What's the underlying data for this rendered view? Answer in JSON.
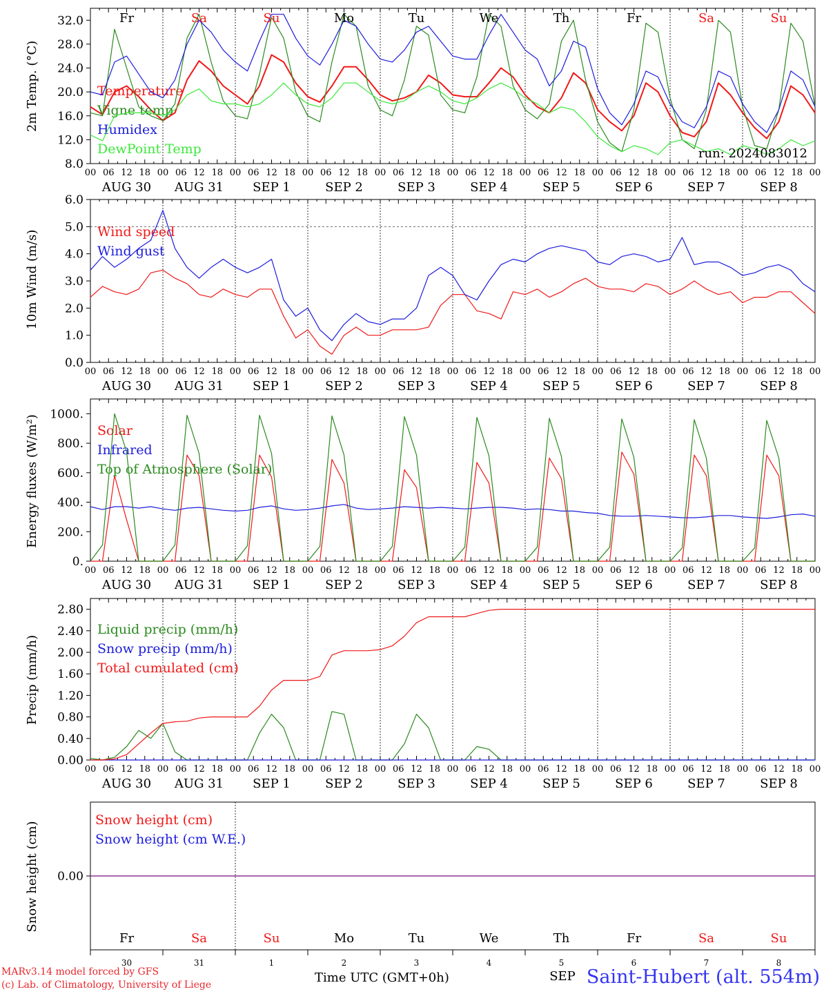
{
  "colors": {
    "red": "#f01818",
    "darkgreen": "#2a8a1e",
    "lightgreen": "#3ae83a",
    "blue": "#1d1ddc",
    "purple": "#8b2a8b",
    "black": "#000000"
  },
  "top_day_names": [
    "Fr",
    "Sa",
    "Su",
    "Mo",
    "Tu",
    "We",
    "Th",
    "Fr",
    "Sa",
    "Su"
  ],
  "hour_ticks": [
    "00",
    "06",
    "12",
    "18"
  ],
  "date_labels": [
    "AUG 30",
    "AUG 31",
    "SEP  1",
    "SEP  2",
    "SEP  3",
    "SEP  4",
    "SEP  5",
    "SEP  6",
    "SEP  7",
    "SEP  8"
  ],
  "bottom_day_names": [
    "Fr",
    "Sa",
    "Su",
    "Mo",
    "Tu",
    "We",
    "Th",
    "Fr",
    "Sa",
    "Su"
  ],
  "bottom_day_numbers": [
    "30",
    "31",
    "1",
    "2",
    "3",
    "4",
    "5",
    "6",
    "7",
    "8"
  ],
  "bottom_stray_label": "SEP",
  "footer": {
    "credit_line1": "MARv3.14 model forced by GFS",
    "credit_line2": "(c) Lab. of Climatology, University of Liege",
    "x_axis_title": "Time UTC (GMT+0h)",
    "station": "Saint-Hubert (alt. 554m)"
  },
  "chart_data": [
    {
      "type": "line",
      "ylabel": "2m Temp. (°C)",
      "ylim": [
        8,
        34
      ],
      "y_tick_labels": [
        "8.0",
        "12.0",
        "16.0",
        "20.0",
        "24.0",
        "28.0",
        "32.0"
      ],
      "annotation": "run: 2024083012",
      "x_step_hours": 6,
      "series": [
        {
          "name": "Temperature",
          "color": "red",
          "values": [
            17.5,
            16.2,
            20.0,
            21.0,
            19.2,
            17.0,
            15.2,
            16.5,
            22.0,
            25.2,
            23.5,
            21.0,
            19.5,
            18.0,
            21.0,
            26.2,
            25.0,
            21.5,
            19.2,
            18.3,
            21.0,
            24.2,
            24.2,
            22.0,
            19.5,
            18.5,
            19.0,
            20.0,
            22.8,
            21.5,
            19.5,
            19.2,
            19.2,
            21.5,
            24.0,
            22.5,
            19.5,
            17.5,
            16.5,
            19.0,
            23.2,
            21.5,
            17.0,
            15.0,
            13.5,
            16.0,
            21.5,
            20.0,
            16.0,
            13.2,
            12.5,
            15.0,
            21.5,
            19.5,
            16.5,
            14.0,
            12.2,
            15.0,
            21.0,
            19.5,
            16.5
          ]
        },
        {
          "name": "Vigne temp",
          "color": "darkgreen",
          "values": [
            16.5,
            16.0,
            30.5,
            24.0,
            17.5,
            16.0,
            15.2,
            18.0,
            29.0,
            33.0,
            25.0,
            18.5,
            16.0,
            15.5,
            23.0,
            32.5,
            29.0,
            20.0,
            16.0,
            15.0,
            25.0,
            33.0,
            31.0,
            21.0,
            17.0,
            16.0,
            22.0,
            31.0,
            29.5,
            19.5,
            17.0,
            16.5,
            22.5,
            33.0,
            31.0,
            21.0,
            17.0,
            15.5,
            18.0,
            28.5,
            32.0,
            22.0,
            15.0,
            11.5,
            10.0,
            17.0,
            31.5,
            30.0,
            19.0,
            12.0,
            10.5,
            17.0,
            32.0,
            30.0,
            17.5,
            11.0,
            10.5,
            17.0,
            31.5,
            28.5,
            17.5
          ]
        },
        {
          "name": "Humidex",
          "color": "blue",
          "values": [
            20.0,
            19.5,
            25.0,
            26.0,
            23.0,
            20.0,
            19.0,
            22.0,
            28.0,
            32.0,
            30.0,
            27.0,
            25.0,
            23.5,
            28.5,
            33.0,
            33.0,
            29.0,
            26.0,
            24.5,
            28.0,
            32.0,
            31.0,
            28.0,
            25.5,
            25.0,
            27.0,
            30.0,
            31.0,
            28.5,
            26.0,
            25.5,
            25.5,
            29.5,
            33.0,
            30.0,
            27.0,
            25.5,
            21.0,
            23.5,
            28.5,
            27.5,
            20.5,
            16.5,
            14.5,
            18.0,
            23.5,
            22.5,
            18.0,
            15.0,
            14.0,
            17.5,
            23.5,
            22.5,
            18.0,
            15.0,
            13.2,
            17.0,
            23.5,
            22.0,
            17.5
          ]
        },
        {
          "name": "DewPoint Temp",
          "color": "lightgreen",
          "values": [
            12.8,
            11.8,
            16.0,
            16.5,
            16.5,
            16.5,
            16.0,
            17.0,
            19.5,
            20.5,
            18.5,
            18.0,
            18.0,
            17.5,
            18.0,
            19.5,
            21.5,
            19.5,
            18.0,
            17.5,
            19.0,
            21.5,
            21.5,
            20.0,
            18.5,
            18.0,
            18.5,
            20.0,
            21.0,
            20.0,
            18.5,
            18.0,
            19.0,
            20.5,
            21.5,
            20.5,
            19.0,
            18.0,
            16.5,
            17.5,
            17.0,
            15.0,
            12.5,
            11.0,
            10.0,
            11.0,
            10.5,
            9.5,
            11.5,
            12.0,
            11.0,
            10.0,
            10.5,
            9.5,
            11.0,
            10.5,
            9.5,
            10.5,
            12.0,
            11.0,
            11.8
          ]
        }
      ]
    },
    {
      "type": "line",
      "ylabel": "10m Wind (m/s)",
      "ylim": [
        0,
        6
      ],
      "y_tick_labels": [
        "0.0",
        "1.0",
        "2.0",
        "3.0",
        "4.0",
        "5.0",
        "6.0"
      ],
      "reference_line": 5.0,
      "x_step_hours": 6,
      "series": [
        {
          "name": "Wind speed",
          "color": "red",
          "values": [
            2.4,
            2.8,
            2.6,
            2.5,
            2.7,
            3.3,
            3.4,
            3.1,
            2.9,
            2.5,
            2.4,
            2.7,
            2.5,
            2.4,
            2.7,
            2.7,
            1.7,
            0.9,
            1.2,
            0.6,
            0.3,
            1.0,
            1.3,
            1.0,
            1.0,
            1.2,
            1.2,
            1.2,
            1.3,
            2.1,
            2.5,
            2.5,
            1.9,
            1.8,
            1.6,
            2.6,
            2.5,
            2.7,
            2.4,
            2.6,
            2.9,
            3.1,
            2.8,
            2.7,
            2.7,
            2.6,
            2.9,
            2.8,
            2.5,
            2.7,
            3.0,
            2.7,
            2.5,
            2.6,
            2.2,
            2.4,
            2.4,
            2.6,
            2.6,
            2.2,
            1.8
          ]
        },
        {
          "name": "Wind gust",
          "color": "blue",
          "values": [
            3.4,
            3.9,
            3.5,
            3.8,
            4.2,
            4.5,
            5.6,
            4.2,
            3.5,
            3.1,
            3.5,
            3.8,
            3.5,
            3.3,
            3.5,
            3.8,
            2.3,
            1.7,
            2.0,
            1.2,
            0.8,
            1.4,
            1.8,
            1.5,
            1.4,
            1.6,
            1.6,
            2.0,
            3.2,
            3.5,
            3.2,
            2.5,
            2.3,
            3.0,
            3.6,
            3.8,
            3.7,
            4.0,
            4.2,
            4.3,
            4.2,
            4.1,
            3.7,
            3.6,
            3.9,
            4.0,
            3.9,
            3.7,
            3.8,
            4.6,
            3.6,
            3.7,
            3.7,
            3.5,
            3.2,
            3.3,
            3.5,
            3.6,
            3.4,
            2.9,
            2.6
          ]
        }
      ]
    },
    {
      "type": "line",
      "ylabel": "Energy fluxes (W/m²)",
      "ylim": [
        0,
        1100
      ],
      "y_tick_labels": [
        "0.",
        "200.",
        "400.",
        "600.",
        "800.",
        "1000."
      ],
      "x_step_hours": 6,
      "series": [
        {
          "name": "Solar",
          "color": "red",
          "values": [
            0,
            0,
            580,
            280,
            0,
            0,
            0,
            0,
            720,
            580,
            0,
            0,
            0,
            0,
            720,
            570,
            0,
            0,
            0,
            0,
            690,
            530,
            0,
            0,
            0,
            0,
            620,
            500,
            0,
            0,
            0,
            0,
            670,
            530,
            0,
            0,
            0,
            0,
            700,
            560,
            0,
            0,
            0,
            0,
            740,
            590,
            0,
            0,
            0,
            0,
            720,
            580,
            0,
            0,
            0,
            0,
            720,
            580,
            0,
            0,
            0
          ]
        },
        {
          "name": "Infrared",
          "color": "blue",
          "values": [
            370,
            350,
            370,
            370,
            360,
            370,
            355,
            345,
            360,
            365,
            355,
            345,
            340,
            345,
            365,
            375,
            355,
            345,
            350,
            360,
            375,
            385,
            360,
            350,
            355,
            360,
            370,
            365,
            360,
            365,
            360,
            355,
            360,
            365,
            365,
            360,
            350,
            355,
            350,
            340,
            340,
            330,
            325,
            310,
            305,
            305,
            310,
            305,
            300,
            295,
            295,
            300,
            310,
            310,
            300,
            295,
            290,
            300,
            315,
            320,
            305
          ]
        },
        {
          "name": "Top of Atmosphere (Solar)",
          "color": "darkgreen",
          "values": [
            0,
            110,
            1000,
            740,
            0,
            0,
            0,
            110,
            990,
            730,
            0,
            0,
            0,
            105,
            990,
            730,
            0,
            0,
            0,
            100,
            985,
            720,
            0,
            0,
            0,
            100,
            980,
            720,
            0,
            0,
            0,
            95,
            975,
            715,
            0,
            0,
            0,
            95,
            970,
            710,
            0,
            0,
            0,
            95,
            965,
            705,
            0,
            0,
            0,
            90,
            960,
            700,
            0,
            0,
            0,
            90,
            955,
            700,
            0,
            0,
            0
          ]
        }
      ]
    },
    {
      "type": "line",
      "ylabel": "Precip (mm/h)",
      "ylim": [
        0,
        3.0
      ],
      "y_tick_labels": [
        "0.00",
        "0.40",
        "0.80",
        "1.20",
        "1.60",
        "2.00",
        "2.40",
        "2.80"
      ],
      "x_step_hours": 6,
      "series": [
        {
          "name": "Liquid precip (mm/h)",
          "color": "darkgreen",
          "values": [
            0.03,
            0.0,
            0.05,
            0.25,
            0.55,
            0.4,
            0.68,
            0.15,
            0.0,
            0.0,
            0.0,
            0.0,
            0.0,
            0.0,
            0.5,
            0.85,
            0.6,
            0.0,
            0.0,
            0.0,
            0.9,
            0.85,
            0.0,
            0.0,
            0.0,
            0.0,
            0.3,
            0.85,
            0.6,
            0.0,
            0.0,
            0.0,
            0.25,
            0.2,
            0.0,
            0.0,
            0.0,
            0.0,
            0.0,
            0.0,
            0.0,
            0.0,
            0.0,
            0.0,
            0.0,
            0.0,
            0.0,
            0.0,
            0.0,
            0.0,
            0.0,
            0.0,
            0.0,
            0.0,
            0.0,
            0.0,
            0.0,
            0.0,
            0.0,
            0.0,
            0.0
          ]
        },
        {
          "name": "Snow precip (mm/h)",
          "color": "blue",
          "values": [
            0,
            0,
            0,
            0,
            0,
            0,
            0,
            0,
            0,
            0,
            0,
            0,
            0,
            0,
            0,
            0,
            0,
            0,
            0,
            0,
            0,
            0,
            0,
            0,
            0,
            0,
            0,
            0,
            0,
            0,
            0,
            0,
            0,
            0,
            0,
            0,
            0,
            0,
            0,
            0,
            0,
            0,
            0,
            0,
            0,
            0,
            0,
            0,
            0,
            0,
            0,
            0,
            0,
            0,
            0,
            0,
            0,
            0,
            0,
            0,
            0
          ]
        },
        {
          "name": "Total cumulated (cm)",
          "color": "red",
          "values": [
            0.0,
            0.0,
            0.02,
            0.1,
            0.3,
            0.5,
            0.68,
            0.71,
            0.72,
            0.78,
            0.8,
            0.8,
            0.8,
            0.8,
            1.0,
            1.3,
            1.48,
            1.48,
            1.48,
            1.55,
            1.95,
            2.03,
            2.03,
            2.03,
            2.05,
            2.12,
            2.3,
            2.55,
            2.66,
            2.66,
            2.66,
            2.66,
            2.72,
            2.78,
            2.8,
            2.8,
            2.8,
            2.8,
            2.8,
            2.8,
            2.8,
            2.8,
            2.8,
            2.8,
            2.8,
            2.8,
            2.8,
            2.8,
            2.8,
            2.8,
            2.8,
            2.8,
            2.8,
            2.8,
            2.8,
            2.8,
            2.8,
            2.8,
            2.8,
            2.8,
            2.8
          ]
        }
      ]
    },
    {
      "type": "line",
      "ylabel": "Snow height (cm)",
      "ylim": [
        -1,
        1
      ],
      "y_tick_labels": [
        "0.00"
      ],
      "x_step_hours": 6,
      "series": [
        {
          "name": "Snow height (cm)",
          "color": "red",
          "values": [
            0,
            0
          ]
        },
        {
          "name": "Snow height (cm W.E.)",
          "color": "blue",
          "values": [
            0,
            0
          ]
        }
      ]
    }
  ]
}
